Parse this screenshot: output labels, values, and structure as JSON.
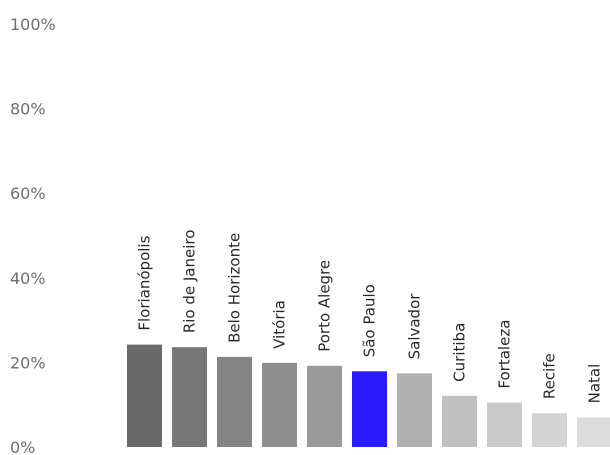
{
  "chart_data": {
    "type": "bar",
    "categories": [
      "Florianópolis",
      "Rio de Janeiro",
      "Belo Horizonte",
      "Vitória",
      "Porto Alegre",
      "São Paulo",
      "Salvador",
      "Curitiba",
      "Fortaleza",
      "Recife",
      "Natal"
    ],
    "values": [
      24.2,
      23.6,
      21.3,
      19.9,
      19.2,
      17.9,
      17.4,
      12.1,
      10.5,
      8.0,
      7.0
    ],
    "colors": [
      "#6a6a6a",
      "#777777",
      "#848484",
      "#8e8e8e",
      "#9a9a9a",
      "#2a1bff",
      "#b0b0b0",
      "#c0c0c0",
      "#cacaca",
      "#d4d4d4",
      "#dcdcdc"
    ],
    "highlight": "São Paulo",
    "y_ticks": [
      "0%",
      "20%",
      "40%",
      "60%",
      "80%",
      "100%"
    ],
    "ylim": [
      0,
      100
    ],
    "grid": false,
    "legend": "none",
    "title": "",
    "xlabel": "",
    "ylabel": ""
  }
}
